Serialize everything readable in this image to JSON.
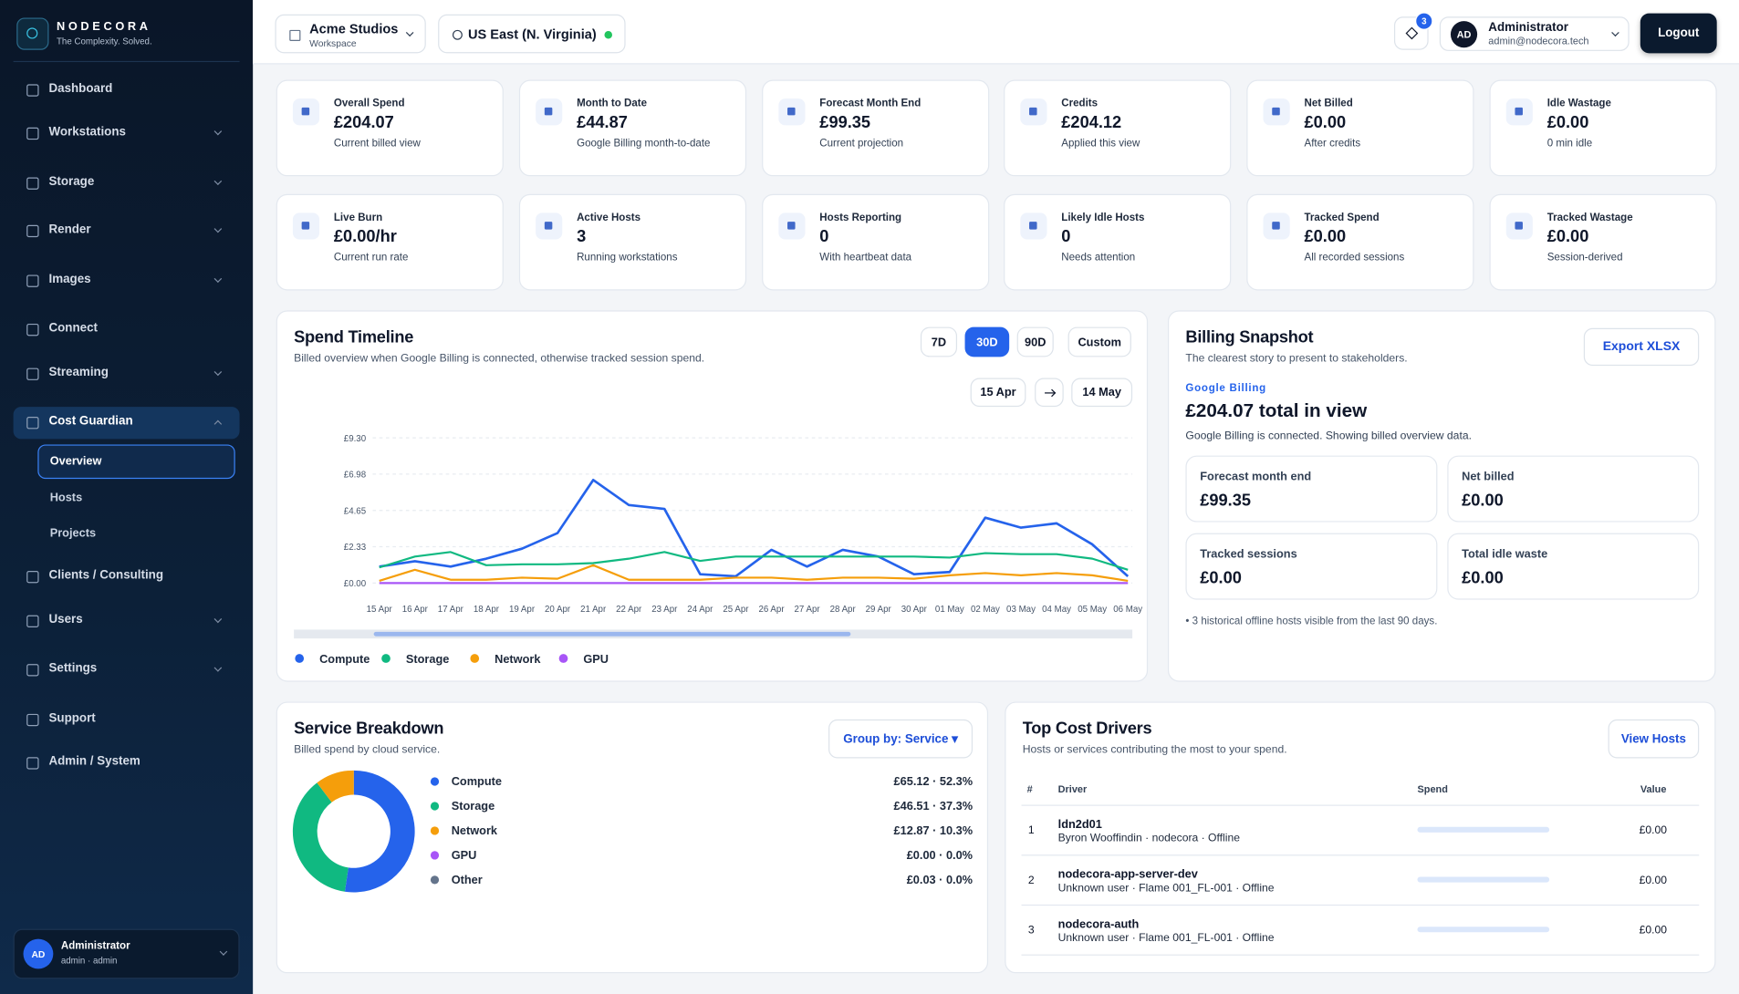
{
  "sidebar": {
    "brand": "NODECORA",
    "tagline": "The Complexity. Solved.",
    "nav": [
      "Dashboard",
      "Workstations",
      "Storage",
      "Render",
      "Images",
      "Connect",
      "Streaming",
      "Cost Guardian",
      "Clients / Consulting",
      "Users",
      "Settings",
      "Support",
      "Admin / System"
    ],
    "subnav": [
      "Overview",
      "Hosts",
      "Projects"
    ],
    "user": {
      "initials": "AD",
      "name": "Administrator",
      "sub": "admin · admin"
    }
  },
  "topbar": {
    "workspace": "Acme Studios",
    "workspace_sub": "Workspace",
    "region": "US East (N. Virginia)",
    "notifications": "3",
    "user_initials": "AD",
    "user_name": "Administrator",
    "user_email": "admin@nodecora.tech",
    "logout": "Logout"
  },
  "kpis": [
    {
      "label": "Overall Spend",
      "value": "£204.07",
      "sub": "Current billed view"
    },
    {
      "label": "Month to Date",
      "value": "£44.87",
      "sub": "Google Billing month-to-date"
    },
    {
      "label": "Forecast Month End",
      "value": "£99.35",
      "sub": "Current projection"
    },
    {
      "label": "Credits",
      "value": "£204.12",
      "sub": "Applied this view"
    },
    {
      "label": "Net Billed",
      "value": "£0.00",
      "sub": "After credits"
    },
    {
      "label": "Idle Wastage",
      "value": "£0.00",
      "sub": "0 min idle"
    },
    {
      "label": "Live Burn",
      "value": "£0.00/hr",
      "sub": "Current run rate"
    },
    {
      "label": "Active Hosts",
      "value": "3",
      "sub": "Running workstations"
    },
    {
      "label": "Hosts Reporting",
      "value": "0",
      "sub": "With heartbeat data"
    },
    {
      "label": "Likely Idle Hosts",
      "value": "0",
      "sub": "Needs attention"
    },
    {
      "label": "Tracked Spend",
      "value": "£0.00",
      "sub": "All recorded sessions"
    },
    {
      "label": "Tracked Wastage",
      "value": "£0.00",
      "sub": "Session-derived"
    }
  ],
  "timeline": {
    "title": "Spend Timeline",
    "subtitle": "Billed overview when Google Billing is connected, otherwise tracked session spend.",
    "ranges": [
      "7D",
      "30D",
      "90D",
      "Custom"
    ],
    "date_from": "15 Apr",
    "date_to": "14 May"
  },
  "billing": {
    "title": "Billing Snapshot",
    "subtitle": "The clearest story to present to stakeholders.",
    "export": "Export XLSX",
    "source": "Google Billing",
    "total": "£204.07 total in view",
    "note": "Google Billing is connected. Showing billed overview data.",
    "cards": [
      {
        "label": "Forecast month end",
        "value": "£99.35"
      },
      {
        "label": "Net billed",
        "value": "£0.00"
      },
      {
        "label": "Tracked sessions",
        "value": "£0.00"
      },
      {
        "label": "Total idle waste",
        "value": "£0.00"
      }
    ],
    "footnote": "• 3 historical offline hosts visible from the last 90 days."
  },
  "breakdown": {
    "title": "Service Breakdown",
    "subtitle": "Billed spend by cloud service.",
    "group_by": "Group by: Service ▾"
  },
  "drivers": {
    "title": "Top Cost Drivers",
    "subtitle": "Hosts or services contributing the most to your spend.",
    "button": "View Hosts",
    "headers": [
      "#",
      "Driver",
      "Spend",
      "Value"
    ],
    "rows": [
      {
        "rank": "1",
        "name": "ldn2d01",
        "detail": "Byron Wooffindin · nodecora · Offline",
        "spend": 0,
        "value": "£0.00"
      },
      {
        "rank": "2",
        "name": "nodecora-app-server-dev",
        "detail": "Unknown user · Flame 001_FL-001 · Offline",
        "spend": 0,
        "value": "£0.00"
      },
      {
        "rank": "3",
        "name": "nodecora-auth",
        "detail": "Unknown user · Flame 001_FL-001 · Offline",
        "spend": 0,
        "value": "£0.00"
      }
    ]
  },
  "chart_data": [
    {
      "type": "line",
      "categories": [
        "15 Apr",
        "16 Apr",
        "17 Apr",
        "18 Apr",
        "19 Apr",
        "20 Apr",
        "21 Apr",
        "22 Apr",
        "23 Apr",
        "24 Apr",
        "25 Apr",
        "26 Apr",
        "27 Apr",
        "28 Apr",
        "29 Apr",
        "30 Apr",
        "01 May",
        "02 May",
        "03 May",
        "04 May",
        "05 May",
        "06 May"
      ],
      "ylim": [
        0,
        9.3
      ],
      "yticks": [
        {
          "value": 0,
          "label": "£0.00"
        },
        {
          "value": 2.33,
          "label": "£2.33"
        },
        {
          "value": 4.65,
          "label": "£4.65"
        },
        {
          "value": 6.98,
          "label": "£6.98"
        },
        {
          "value": 9.3,
          "label": "£9.30"
        }
      ],
      "grid": true,
      "series": [
        {
          "name": "Compute",
          "color": "#2563eb",
          "values": [
            1.06,
            1.4,
            1.06,
            1.56,
            2.2,
            3.2,
            6.6,
            5.0,
            4.75,
            0.57,
            0.43,
            2.13,
            1.06,
            2.13,
            1.7,
            0.57,
            0.71,
            4.19,
            3.55,
            3.83,
            2.48,
            0.43
          ]
        },
        {
          "name": "Storage",
          "color": "#10b981",
          "values": [
            1.0,
            1.7,
            1.99,
            1.14,
            1.2,
            1.2,
            1.28,
            1.56,
            1.99,
            1.42,
            1.7,
            1.7,
            1.7,
            1.7,
            1.7,
            1.7,
            1.63,
            1.92,
            1.85,
            1.85,
            1.56,
            0.85
          ]
        },
        {
          "name": "Network",
          "color": "#f59e0b",
          "values": [
            0.14,
            0.85,
            0.21,
            0.21,
            0.35,
            0.28,
            1.14,
            0.21,
            0.21,
            0.21,
            0.35,
            0.35,
            0.21,
            0.35,
            0.35,
            0.28,
            0.5,
            0.64,
            0.5,
            0.64,
            0.5,
            0.14
          ]
        },
        {
          "name": "GPU",
          "color": "#a855f7",
          "values": [
            0,
            0,
            0,
            0,
            0,
            0,
            0,
            0,
            0,
            0,
            0,
            0,
            0,
            0,
            0,
            0,
            0,
            0,
            0,
            0,
            0,
            0
          ]
        }
      ]
    },
    {
      "type": "pie",
      "donut": true,
      "categories": [
        "Compute",
        "Storage",
        "Network",
        "GPU",
        "Other"
      ],
      "values": [
        52.3,
        37.3,
        10.3,
        0.0,
        0.0
      ],
      "value_labels": [
        "£65.12 · 52.3%",
        "£46.51 · 37.3%",
        "£12.87 · 10.3%",
        "£0.00 · 0.0%",
        "£0.03 · 0.0%"
      ],
      "colors": [
        "#2563eb",
        "#10b981",
        "#f59e0b",
        "#a855f7",
        "#64748b"
      ]
    }
  ]
}
